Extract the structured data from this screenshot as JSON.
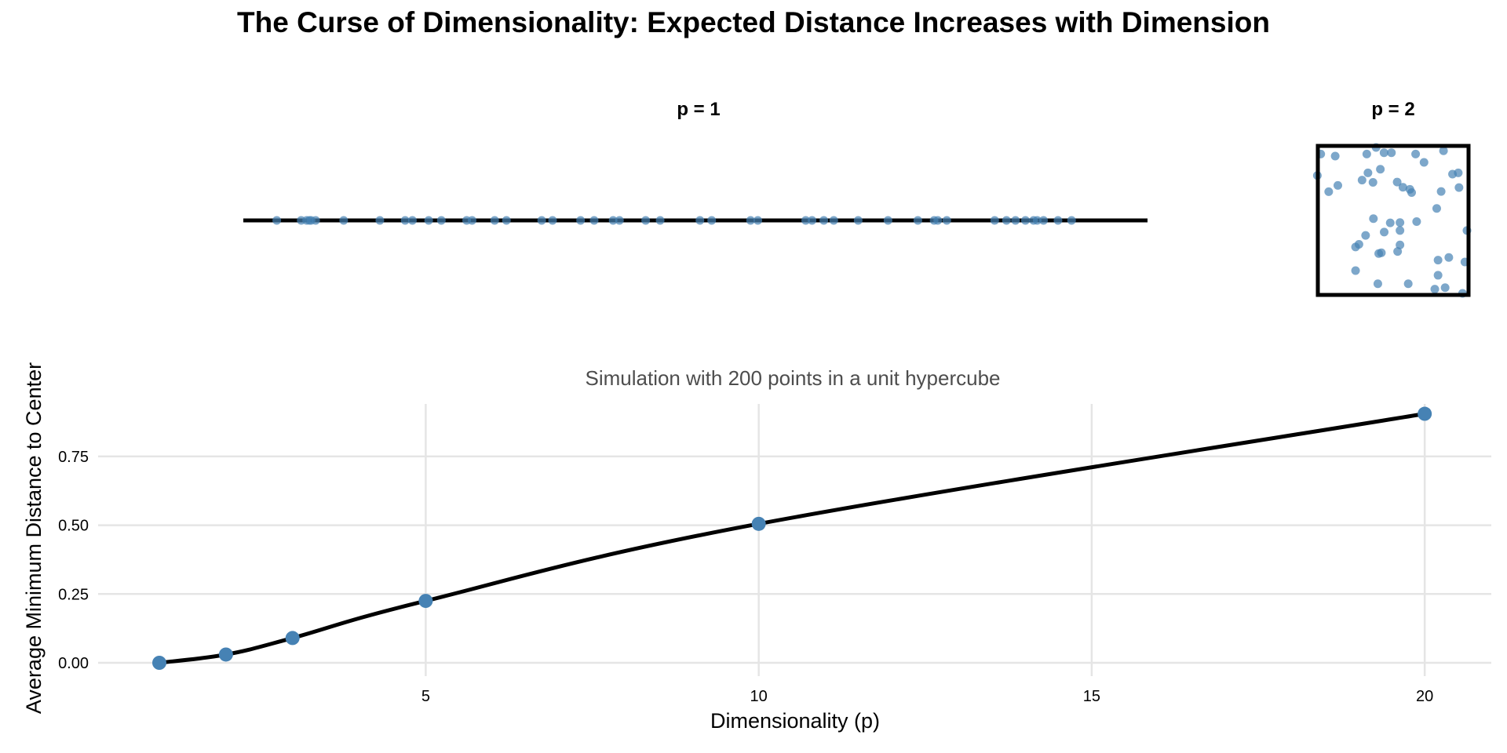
{
  "chart_data": [
    {
      "type": "scatter",
      "facet_label": "p = 1",
      "description_points": "1D uniform points on a unit segment",
      "x": [
        0.037,
        0.064,
        0.07,
        0.073,
        0.075,
        0.08,
        0.111,
        0.151,
        0.179,
        0.187,
        0.205,
        0.219,
        0.247,
        0.253,
        0.278,
        0.291,
        0.33,
        0.342,
        0.373,
        0.388,
        0.409,
        0.416,
        0.445,
        0.461,
        0.505,
        0.518,
        0.561,
        0.569,
        0.622,
        0.629,
        0.642,
        0.653,
        0.68,
        0.713,
        0.746,
        0.764,
        0.768,
        0.778,
        0.831,
        0.844,
        0.854,
        0.865,
        0.874,
        0.878,
        0.885,
        0.901,
        0.916
      ]
    },
    {
      "type": "scatter",
      "facet_label": "p = 2",
      "points": [
        [
          0.009,
          0.955
        ],
        [
          0.107,
          0.941
        ],
        [
          0.321,
          0.955
        ],
        [
          0.384,
          1.0
        ],
        [
          0.438,
          0.964
        ],
        [
          0.488,
          0.964
        ],
        [
          0.652,
          0.955
        ],
        [
          0.709,
          0.898
        ],
        [
          0.841,
          0.977
        ],
        [
          -0.014,
          0.808
        ],
        [
          0.329,
          0.826
        ],
        [
          0.413,
          0.851
        ],
        [
          0.289,
          0.776
        ],
        [
          0.363,
          0.761
        ],
        [
          0.125,
          0.74
        ],
        [
          0.063,
          0.697
        ],
        [
          0.527,
          0.763
        ],
        [
          0.566,
          0.727
        ],
        [
          0.613,
          0.713
        ],
        [
          0.625,
          0.691
        ],
        [
          0.902,
          0.817
        ],
        [
          0.941,
          0.826
        ],
        [
          0.946,
          0.725
        ],
        [
          0.825,
          0.698
        ],
        [
          0.795,
          0.582
        ],
        [
          0.366,
          0.512
        ],
        [
          0.48,
          0.483
        ],
        [
          0.546,
          0.485
        ],
        [
          0.439,
          0.42
        ],
        [
          0.546,
          0.431
        ],
        [
          0.659,
          0.492
        ],
        [
          1.0,
          0.431
        ],
        [
          0.313,
          0.397
        ],
        [
          0.268,
          0.336
        ],
        [
          0.245,
          0.318
        ],
        [
          0.546,
          0.332
        ],
        [
          0.53,
          0.287
        ],
        [
          0.42,
          0.278
        ],
        [
          0.402,
          0.273
        ],
        [
          0.245,
          0.156
        ],
        [
          0.804,
          0.228
        ],
        [
          0.877,
          0.246
        ],
        [
          0.986,
          0.215
        ],
        [
          0.804,
          0.124
        ],
        [
          0.396,
          0.066
        ],
        [
          0.602,
          0.066
        ],
        [
          0.782,
          0.029
        ],
        [
          0.852,
          0.039
        ],
        [
          0.97,
          0.0
        ]
      ]
    },
    {
      "type": "line",
      "title": "Simulation with 200 points in a unit hypercube",
      "xlabel": "Dimensionality (p)",
      "ylabel": "Average Minimum Distance to Center",
      "x": [
        1,
        2,
        3,
        5,
        10,
        20
      ],
      "y": [
        0.0,
        0.03,
        0.09,
        0.225,
        0.505,
        0.905
      ],
      "xlim": [
        0.05,
        21.05
      ],
      "ylim": [
        0,
        0.93
      ],
      "xticks": [
        5,
        10,
        15,
        20
      ],
      "xtick_labels": [
        "5",
        "10",
        "15",
        "20"
      ],
      "yticks": [
        0,
        0.25,
        0.5,
        0.75
      ],
      "ytick_labels": [
        "0.00",
        "0.25",
        "0.50",
        "0.75"
      ],
      "grid": true,
      "point_color": "#4682b4",
      "line_color": "#000000"
    }
  ],
  "title": "The Curse of Dimensionality: Expected Distance Increases with Dimension"
}
